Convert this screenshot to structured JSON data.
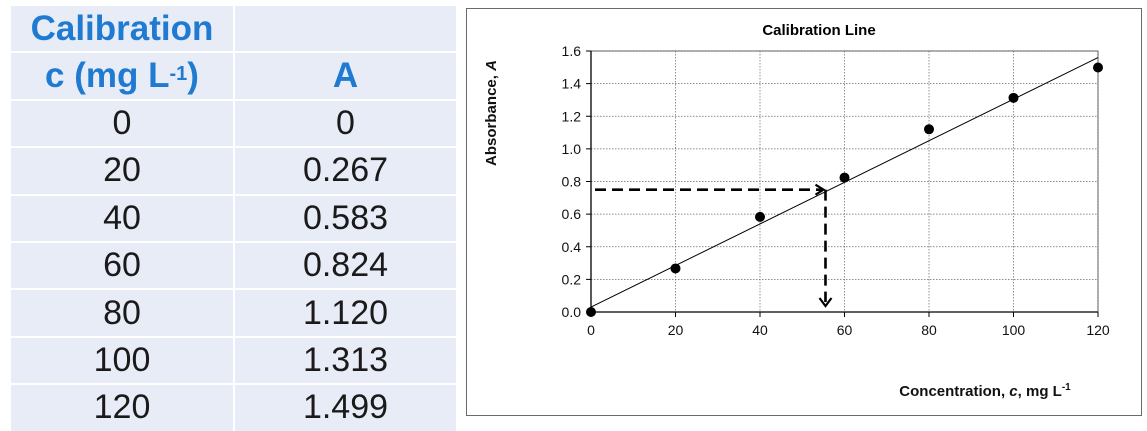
{
  "table": {
    "header_left_line1": "Calibration",
    "header_left_line2_main": "c (mg L",
    "header_left_line2_sup": "-1",
    "header_left_line2_end": ")",
    "header_right": "A",
    "rows": [
      {
        "c": "0",
        "a": "0"
      },
      {
        "c": "20",
        "a": "0.267"
      },
      {
        "c": "40",
        "a": "0.583"
      },
      {
        "c": "60",
        "a": "0.824"
      },
      {
        "c": "80",
        "a": "1.120"
      },
      {
        "c": "100",
        "a": "1.313"
      },
      {
        "c": "120",
        "a": "1.499"
      }
    ]
  },
  "chart_data": {
    "type": "scatter",
    "title": "Calibration Line",
    "xlabel_main": "Concentration, ",
    "xlabel_italic": "c",
    "xlabel_unit": ", mg L",
    "xlabel_sup": "-1",
    "ylabel_main": "Absorbance, ",
    "ylabel_italic": "A",
    "xlim": [
      0,
      120
    ],
    "ylim": [
      0,
      1.6
    ],
    "xticks": [
      "0",
      "20",
      "40",
      "60",
      "80",
      "100",
      "120"
    ],
    "yticks": [
      "0.0",
      "0.2",
      "0.4",
      "0.6",
      "0.8",
      "1.0",
      "1.2",
      "1.4",
      "1.6"
    ],
    "grid": true,
    "points": [
      {
        "x": 0,
        "y": 0
      },
      {
        "x": 20,
        "y": 0.267
      },
      {
        "x": 40,
        "y": 0.583
      },
      {
        "x": 60,
        "y": 0.824
      },
      {
        "x": 80,
        "y": 1.12
      },
      {
        "x": 100,
        "y": 1.313
      },
      {
        "x": 120,
        "y": 1.499
      }
    ],
    "fit_line": {
      "x": [
        0,
        120
      ],
      "y": [
        0.03,
        1.56
      ]
    },
    "lookup": {
      "y": 0.75,
      "x": 55.5
    }
  }
}
